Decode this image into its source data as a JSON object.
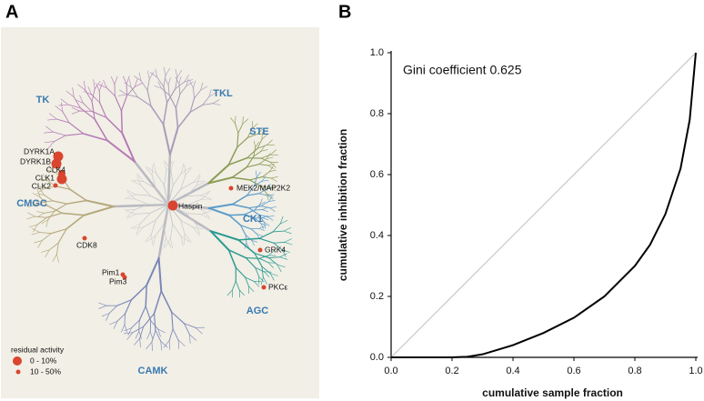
{
  "panel_a": {
    "label": "A",
    "groups": [
      "TK",
      "TKL",
      "STE",
      "CK1",
      "AGC",
      "CAMK",
      "CMGC"
    ],
    "kinases": [
      "DYRK1A",
      "DYRK1B",
      "CLK4",
      "CLK1",
      "CLK2",
      "Haspin",
      "MEK2/MAP2K2",
      "CDK8",
      "GRK4",
      "PKCε",
      "Pim1",
      "Pim3"
    ],
    "legend": {
      "title": "residual activity",
      "items": [
        "0 - 10%",
        "10 - 50%"
      ]
    }
  },
  "chart_data": {
    "type": "line",
    "panel_label": "B",
    "annotation": "Gini coefficient 0.625",
    "x_label": "cumulative sample fraction",
    "y_label": "cumulative inhibition fraction",
    "xlim": [
      0,
      1
    ],
    "ylim": [
      0,
      1
    ],
    "xticks": [
      {
        "value": 0,
        "label": "0.0"
      },
      0.2,
      0.4,
      0.6,
      0.8,
      {
        "value": 1,
        "label": "1.0"
      }
    ],
    "yticks": [
      {
        "value": 0,
        "label": "0.0"
      },
      0.2,
      0.4,
      0.6,
      0.8,
      {
        "value": 1,
        "label": "1.0"
      }
    ],
    "series": [
      {
        "color": "#000000",
        "x": [
          0,
          0.1,
          0.2,
          0.25,
          0.3,
          0.4,
          0.5,
          0.6,
          0.7,
          0.8,
          0.85,
          0.9,
          0.95,
          0.98,
          1
        ],
        "values": [
          0,
          0,
          0,
          0.002,
          0.01,
          0.04,
          0.08,
          0.13,
          0.2,
          0.3,
          0.37,
          0.47,
          0.62,
          0.78,
          1
        ]
      },
      {
        "color": "#c0c0c0",
        "x": [
          0,
          1
        ],
        "values": [
          0,
          1
        ]
      }
    ]
  }
}
